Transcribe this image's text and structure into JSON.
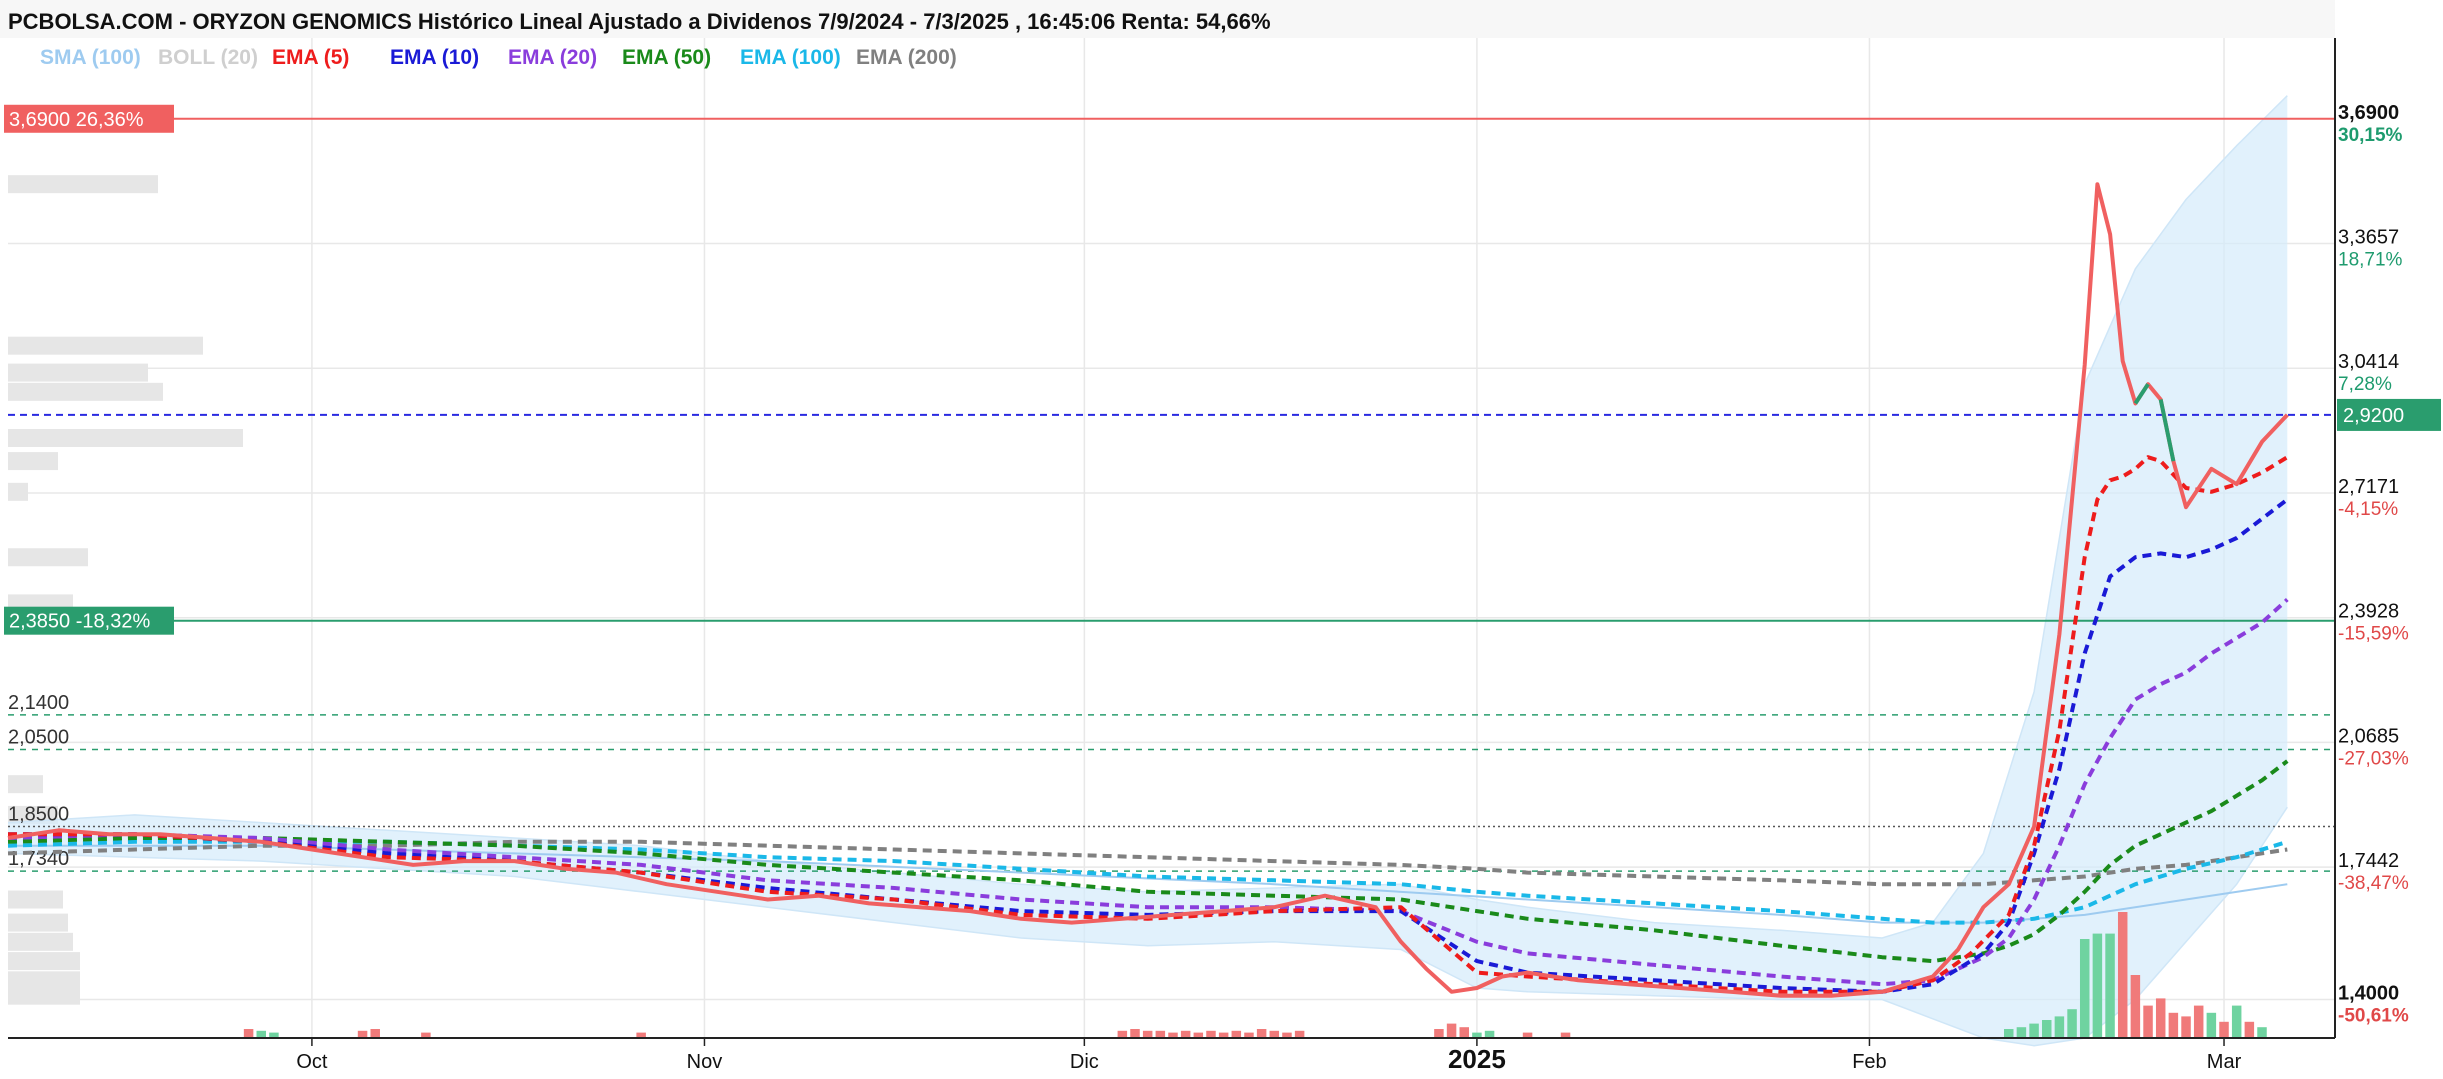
{
  "chart_data": {
    "type": "line",
    "title": "PCBOLSA.COM - ORYZON GENOMICS Histórico Lineal Ajustado a Dividenos 7/9/2024 - 7/3/2025 , 16:45:06 Renta: 54,66%",
    "indicators": [
      {
        "label": "SMA (100)",
        "color": "#9ecbf0"
      },
      {
        "label": "BOLL (20)",
        "color": "#cfcfcf"
      },
      {
        "label": "EMA (5)",
        "color": "#ee1c1c"
      },
      {
        "label": "EMA (10)",
        "color": "#1a1ad6"
      },
      {
        "label": "EMA (20)",
        "color": "#8a3ddc"
      },
      {
        "label": "EMA (50)",
        "color": "#1a8a1a"
      },
      {
        "label": "EMA (100)",
        "color": "#1ab8e8"
      },
      {
        "label": "EMA (200)",
        "color": "#808080"
      }
    ],
    "ylim": [
      1.3,
      3.9
    ],
    "price_axis": [
      {
        "value": 3.69,
        "label": "3,6900",
        "pct": "30,15%",
        "pct_color": "#1e9b6e",
        "bold": true
      },
      {
        "value": 3.3657,
        "label": "3,3657",
        "pct": "18,71%",
        "pct_color": "#1e9b6e",
        "bold": false
      },
      {
        "value": 3.0414,
        "label": "3,0414",
        "pct": "7,28%",
        "pct_color": "#1e9b6e",
        "bold": false
      },
      {
        "value": 2.7171,
        "label": "2,7171",
        "pct": "-4,15%",
        "pct_color": "#e04848",
        "bold": false
      },
      {
        "value": 2.3928,
        "label": "2,3928",
        "pct": "-15,59%",
        "pct_color": "#e04848",
        "bold": false
      },
      {
        "value": 2.0685,
        "label": "2,0685",
        "pct": "-27,03%",
        "pct_color": "#e04848",
        "bold": false
      },
      {
        "value": 1.7442,
        "label": "1,7442",
        "pct": "-38,47%",
        "pct_color": "#e04848",
        "bold": false
      },
      {
        "value": 1.4,
        "label": "1,4000",
        "pct": "-50,61%",
        "pct_color": "#e04848",
        "bold": true
      }
    ],
    "last_price": {
      "value": 2.92,
      "label": "2,9200"
    },
    "level_badges": [
      {
        "value": 3.69,
        "text": "3,6900  26,36%",
        "color": "#f06060"
      },
      {
        "value": 2.385,
        "text": "2,3850  -18,32%",
        "color": "#2a9d6e"
      }
    ],
    "reference_levels": [
      {
        "value": 2.14,
        "label": "2,1400"
      },
      {
        "value": 2.05,
        "label": "2,0500"
      },
      {
        "value": 1.85,
        "label": "1,8500"
      },
      {
        "value": 1.734,
        "label": "1,7340"
      }
    ],
    "x_ticks": [
      {
        "label": "Oct",
        "day": 24,
        "bold": false
      },
      {
        "label": "Nov",
        "day": 55,
        "bold": false
      },
      {
        "label": "Dic",
        "day": 85,
        "bold": false
      },
      {
        "label": "2025",
        "day": 116,
        "bold": true
      },
      {
        "label": "Feb",
        "day": 147,
        "bold": false
      },
      {
        "label": "Mar",
        "day": 175,
        "bold": false
      }
    ],
    "x_range": [
      0,
      181
    ],
    "series": [
      {
        "name": "Precio",
        "days": [
          0,
          4,
          8,
          12,
          16,
          20,
          24,
          28,
          32,
          36,
          40,
          44,
          48,
          52,
          56,
          60,
          64,
          68,
          72,
          76,
          80,
          84,
          88,
          92,
          96,
          100,
          104,
          108,
          110,
          112,
          114,
          116,
          118,
          120,
          124,
          128,
          132,
          136,
          140,
          144,
          148,
          152,
          154,
          156,
          158,
          160,
          162,
          164,
          165,
          166,
          167,
          168,
          169,
          170,
          171,
          172,
          174,
          176,
          178,
          180
        ],
        "values": [
          1.82,
          1.84,
          1.83,
          1.83,
          1.82,
          1.81,
          1.79,
          1.77,
          1.75,
          1.76,
          1.76,
          1.74,
          1.73,
          1.7,
          1.68,
          1.66,
          1.67,
          1.65,
          1.64,
          1.63,
          1.61,
          1.6,
          1.61,
          1.62,
          1.63,
          1.64,
          1.67,
          1.64,
          1.55,
          1.48,
          1.42,
          1.43,
          1.46,
          1.47,
          1.45,
          1.44,
          1.43,
          1.42,
          1.41,
          1.41,
          1.42,
          1.46,
          1.53,
          1.64,
          1.7,
          1.85,
          2.35,
          3.05,
          3.52,
          3.39,
          3.06,
          2.95,
          3.0,
          2.96,
          2.8,
          2.68,
          2.78,
          2.74,
          2.85,
          2.92
        ]
      },
      {
        "name": "EMA (5)",
        "days": [
          0,
          10,
          20,
          30,
          40,
          50,
          60,
          70,
          80,
          90,
          100,
          110,
          116,
          120,
          130,
          140,
          148,
          152,
          155,
          158,
          160,
          162,
          164,
          165,
          166,
          167,
          168,
          169,
          170,
          172,
          174,
          176,
          178,
          180
        ],
        "values": [
          1.83,
          1.83,
          1.81,
          1.77,
          1.76,
          1.73,
          1.68,
          1.66,
          1.62,
          1.61,
          1.63,
          1.64,
          1.47,
          1.46,
          1.44,
          1.42,
          1.42,
          1.45,
          1.52,
          1.62,
          1.8,
          2.1,
          2.55,
          2.7,
          2.75,
          2.76,
          2.78,
          2.81,
          2.8,
          2.73,
          2.72,
          2.74,
          2.77,
          2.81
        ]
      },
      {
        "name": "EMA (10)",
        "days": [
          0,
          10,
          20,
          30,
          40,
          50,
          60,
          70,
          80,
          90,
          100,
          110,
          116,
          120,
          130,
          140,
          148,
          152,
          156,
          158,
          160,
          162,
          164,
          166,
          168,
          170,
          172,
          174,
          176,
          178,
          180
        ],
        "values": [
          1.83,
          1.83,
          1.81,
          1.78,
          1.76,
          1.73,
          1.69,
          1.66,
          1.63,
          1.62,
          1.63,
          1.63,
          1.5,
          1.47,
          1.45,
          1.43,
          1.42,
          1.44,
          1.52,
          1.6,
          1.78,
          2.0,
          2.3,
          2.5,
          2.55,
          2.56,
          2.55,
          2.57,
          2.6,
          2.65,
          2.7
        ]
      },
      {
        "name": "EMA (20)",
        "days": [
          0,
          10,
          20,
          30,
          40,
          50,
          60,
          70,
          80,
          90,
          100,
          110,
          116,
          120,
          130,
          140,
          148,
          152,
          156,
          158,
          160,
          162,
          164,
          166,
          168,
          170,
          172,
          174,
          176,
          178,
          180
        ],
        "values": [
          1.82,
          1.83,
          1.82,
          1.79,
          1.77,
          1.75,
          1.71,
          1.69,
          1.66,
          1.64,
          1.64,
          1.63,
          1.55,
          1.52,
          1.49,
          1.46,
          1.44,
          1.45,
          1.51,
          1.56,
          1.66,
          1.8,
          1.96,
          2.08,
          2.18,
          2.22,
          2.25,
          2.3,
          2.34,
          2.38,
          2.44
        ]
      },
      {
        "name": "EMA (50)",
        "days": [
          0,
          10,
          20,
          30,
          40,
          50,
          60,
          70,
          80,
          90,
          100,
          110,
          116,
          120,
          130,
          140,
          148,
          152,
          156,
          158,
          160,
          162,
          164,
          166,
          168,
          170,
          172,
          174,
          176,
          178,
          180
        ],
        "values": [
          1.81,
          1.82,
          1.82,
          1.81,
          1.8,
          1.78,
          1.75,
          1.73,
          1.71,
          1.68,
          1.67,
          1.66,
          1.63,
          1.61,
          1.58,
          1.54,
          1.51,
          1.5,
          1.52,
          1.54,
          1.57,
          1.62,
          1.68,
          1.75,
          1.8,
          1.83,
          1.86,
          1.89,
          1.93,
          1.97,
          2.02
        ]
      },
      {
        "name": "EMA (100)",
        "days": [
          0,
          10,
          20,
          30,
          40,
          50,
          60,
          70,
          80,
          90,
          100,
          110,
          116,
          120,
          130,
          140,
          148,
          152,
          156,
          160,
          164,
          168,
          172,
          176,
          180
        ],
        "values": [
          1.8,
          1.81,
          1.81,
          1.81,
          1.8,
          1.79,
          1.77,
          1.76,
          1.74,
          1.72,
          1.71,
          1.7,
          1.68,
          1.67,
          1.65,
          1.63,
          1.61,
          1.6,
          1.6,
          1.61,
          1.64,
          1.7,
          1.74,
          1.77,
          1.81
        ]
      },
      {
        "name": "EMA (200)",
        "days": [
          0,
          10,
          20,
          30,
          40,
          50,
          60,
          70,
          80,
          90,
          100,
          110,
          116,
          120,
          130,
          140,
          148,
          152,
          156,
          160,
          164,
          168,
          172,
          176,
          180
        ],
        "values": [
          1.78,
          1.79,
          1.8,
          1.8,
          1.81,
          1.81,
          1.8,
          1.79,
          1.78,
          1.77,
          1.76,
          1.75,
          1.74,
          1.73,
          1.72,
          1.71,
          1.7,
          1.7,
          1.7,
          1.71,
          1.72,
          1.74,
          1.75,
          1.77,
          1.79
        ]
      },
      {
        "name": "SMA (100)",
        "days": [
          0,
          20,
          40,
          60,
          80,
          100,
          120,
          140,
          148,
          156,
          164,
          172,
          180
        ],
        "values": [
          1.8,
          1.8,
          1.78,
          1.76,
          1.73,
          1.7,
          1.66,
          1.62,
          1.6,
          1.6,
          1.62,
          1.66,
          1.7
        ]
      }
    ],
    "bollinger": {
      "days": [
        0,
        10,
        20,
        30,
        40,
        50,
        60,
        70,
        80,
        90,
        100,
        110,
        116,
        120,
        130,
        140,
        148,
        152,
        156,
        160,
        164,
        168,
        172,
        176,
        180
      ],
      "upper": [
        1.86,
        1.88,
        1.86,
        1.84,
        1.82,
        1.8,
        1.76,
        1.73,
        1.7,
        1.68,
        1.69,
        1.7,
        1.66,
        1.64,
        1.6,
        1.58,
        1.56,
        1.6,
        1.78,
        2.2,
        3.0,
        3.3,
        3.48,
        3.62,
        3.75
      ],
      "lower": [
        1.78,
        1.77,
        1.76,
        1.74,
        1.72,
        1.68,
        1.64,
        1.6,
        1.56,
        1.54,
        1.55,
        1.53,
        1.43,
        1.42,
        1.41,
        1.4,
        1.4,
        1.35,
        1.3,
        1.28,
        1.3,
        1.4,
        1.55,
        1.7,
        1.9
      ]
    },
    "volume": {
      "ymax": 100,
      "bars": [
        {
          "day": 19,
          "v": 5,
          "up": false
        },
        {
          "day": 20,
          "v": 4,
          "up": true
        },
        {
          "day": 21,
          "v": 3,
          "up": true
        },
        {
          "day": 28,
          "v": 4,
          "up": false
        },
        {
          "day": 29,
          "v": 5,
          "up": false
        },
        {
          "day": 33,
          "v": 3,
          "up": false
        },
        {
          "day": 50,
          "v": 3,
          "up": false
        },
        {
          "day": 88,
          "v": 4,
          "up": false
        },
        {
          "day": 89,
          "v": 5,
          "up": false
        },
        {
          "day": 90,
          "v": 4,
          "up": false
        },
        {
          "day": 91,
          "v": 4,
          "up": false
        },
        {
          "day": 92,
          "v": 3,
          "up": false
        },
        {
          "day": 93,
          "v": 4,
          "up": false
        },
        {
          "day": 94,
          "v": 3,
          "up": false
        },
        {
          "day": 95,
          "v": 4,
          "up": false
        },
        {
          "day": 96,
          "v": 3,
          "up": false
        },
        {
          "day": 97,
          "v": 4,
          "up": false
        },
        {
          "day": 98,
          "v": 3,
          "up": false
        },
        {
          "day": 99,
          "v": 5,
          "up": false
        },
        {
          "day": 100,
          "v": 4,
          "up": false
        },
        {
          "day": 101,
          "v": 3,
          "up": false
        },
        {
          "day": 102,
          "v": 4,
          "up": false
        },
        {
          "day": 113,
          "v": 5,
          "up": false
        },
        {
          "day": 114,
          "v": 8,
          "up": false
        },
        {
          "day": 115,
          "v": 6,
          "up": false
        },
        {
          "day": 116,
          "v": 3,
          "up": true
        },
        {
          "day": 117,
          "v": 4,
          "up": true
        },
        {
          "day": 120,
          "v": 3,
          "up": false
        },
        {
          "day": 123,
          "v": 3,
          "up": false
        },
        {
          "day": 158,
          "v": 5,
          "up": true
        },
        {
          "day": 159,
          "v": 6,
          "up": true
        },
        {
          "day": 160,
          "v": 8,
          "up": true
        },
        {
          "day": 161,
          "v": 10,
          "up": true
        },
        {
          "day": 162,
          "v": 12,
          "up": true
        },
        {
          "day": 163,
          "v": 16,
          "up": true
        },
        {
          "day": 164,
          "v": 55,
          "up": true
        },
        {
          "day": 165,
          "v": 58,
          "up": true
        },
        {
          "day": 166,
          "v": 58,
          "up": true
        },
        {
          "day": 167,
          "v": 70,
          "up": false
        },
        {
          "day": 168,
          "v": 35,
          "up": false
        },
        {
          "day": 169,
          "v": 18,
          "up": false
        },
        {
          "day": 170,
          "v": 22,
          "up": false
        },
        {
          "day": 171,
          "v": 14,
          "up": false
        },
        {
          "day": 172,
          "v": 12,
          "up": false
        },
        {
          "day": 173,
          "v": 18,
          "up": false
        },
        {
          "day": 174,
          "v": 14,
          "up": true
        },
        {
          "day": 175,
          "v": 9,
          "up": false
        },
        {
          "day": 176,
          "v": 18,
          "up": true
        },
        {
          "day": 177,
          "v": 9,
          "up": false
        },
        {
          "day": 178,
          "v": 6,
          "up": true
        }
      ]
    },
    "volume_profile": [
      {
        "price": 3.52,
        "w": 150
      },
      {
        "price": 3.1,
        "w": 195
      },
      {
        "price": 3.03,
        "w": 140
      },
      {
        "price": 2.98,
        "w": 155
      },
      {
        "price": 2.86,
        "w": 235
      },
      {
        "price": 2.8,
        "w": 50
      },
      {
        "price": 2.72,
        "w": 20
      },
      {
        "price": 2.55,
        "w": 80
      },
      {
        "price": 2.43,
        "w": 65
      },
      {
        "price": 1.96,
        "w": 35
      },
      {
        "price": 1.88,
        "w": 50
      },
      {
        "price": 1.66,
        "w": 55
      },
      {
        "price": 1.6,
        "w": 60
      },
      {
        "price": 1.55,
        "w": 65
      },
      {
        "price": 1.5,
        "w": 72
      },
      {
        "price": 1.45,
        "w": 72
      },
      {
        "price": 1.41,
        "w": 72
      }
    ],
    "grid": true
  }
}
